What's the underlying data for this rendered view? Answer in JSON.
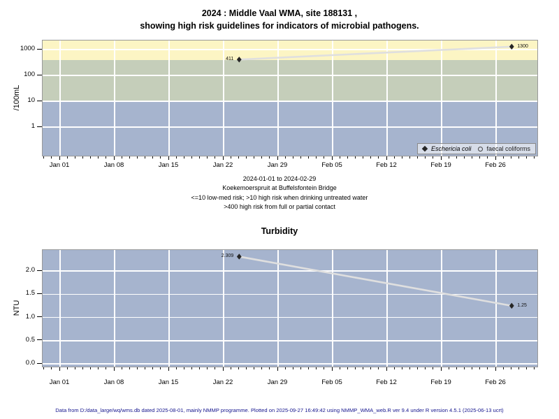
{
  "title": {
    "line1": "2024 : Middle Vaal WMA, site 188131 ,",
    "line2": "showing high risk guidelines for indicators of microbial pathogens."
  },
  "caption": {
    "line1": "2024-01-01 to 2024-02-29",
    "line2": "Koekemoerspruit at Buffelsfontein Bridge",
    "line3": "<=10 low-med risk; >10 high risk when drinking untreated water",
    "line4": ">400 high risk from full or partial contact"
  },
  "footer": "Data from D:/data_large/wq/wms.db dated 2025-08-01, mainly NMMP programme. Plotted on 2025-09-27 16:49:42 using NMMP_WMA_web.R ver 9.4 under R version 4.5.1 (2025-06-13 ucrt)",
  "colors": {
    "grid": "#FFFFFF",
    "data_line": "#DFDFDF",
    "marker": "#262626",
    "panel_border": "#999999",
    "axis_tick": "#000000",
    "footer_text": "#15158E",
    "band_yellow": "#FCF5C4",
    "band_green": "#C5CEBA",
    "band_blue": "#A6B4CE"
  },
  "chart_data": [
    {
      "type": "line",
      "title": "",
      "ylabel": "/100mL",
      "yscale": "log10",
      "ylim": [
        0.07,
        2200
      ],
      "grid": true,
      "y_ticks": [
        {
          "label": "1000",
          "value": 1000
        },
        {
          "label": "100",
          "value": 100
        },
        {
          "label": "10",
          "value": 10
        },
        {
          "label": "1",
          "value": 1
        }
      ],
      "x_ticks": [
        {
          "label": "Jan 01",
          "day": 0
        },
        {
          "label": "Jan 08",
          "day": 7
        },
        {
          "label": "Jan 15",
          "day": 14
        },
        {
          "label": "Jan 22",
          "day": 21
        },
        {
          "label": "Jan 29",
          "day": 28
        },
        {
          "label": "Feb 05",
          "day": 35
        },
        {
          "label": "Feb 12",
          "day": 42
        },
        {
          "label": "Feb 19",
          "day": 49
        },
        {
          "label": "Feb 26",
          "day": 56
        }
      ],
      "bands": [
        {
          "name": "high-risk-full-partial-contact",
          "range": ">400",
          "color": "#FCF5C4",
          "from": 400,
          "to": 2200
        },
        {
          "name": "high-risk-drinking-untreated",
          "range": "10-400",
          "color": "#C5CEBA",
          "from": 10,
          "to": 400
        },
        {
          "name": "low-med-risk",
          "range": "<=10",
          "color": "#A6B4CE",
          "from": 0.07,
          "to": 10
        }
      ],
      "series": [
        {
          "name": "Eschericia coli",
          "marker": "filled-diamond",
          "points": [
            {
              "date": "2024-01-24",
              "value": 411,
              "label": "411",
              "label_side": "left"
            },
            {
              "date": "2024-02-28",
              "value": 1300,
              "label": "1300",
              "label_side": "right"
            }
          ]
        },
        {
          "name": "faecal coliforms",
          "marker": "open-circle",
          "points": []
        }
      ],
      "legend": {
        "position": "bottom-right",
        "entries": [
          {
            "symbol": "filled-diamond",
            "label": "Eschericia coli",
            "italic": true
          },
          {
            "symbol": "open-circle",
            "label": "faecal coliforms",
            "italic": false
          }
        ]
      }
    },
    {
      "type": "line",
      "title": "Turbidity",
      "ylabel": "NTU",
      "yscale": "linear",
      "ylim": [
        -0.06,
        2.45
      ],
      "background": "#A6B4CE",
      "grid": true,
      "y_ticks": [
        {
          "label": "2.0",
          "value": 2.0
        },
        {
          "label": "1.5",
          "value": 1.5
        },
        {
          "label": "1.0",
          "value": 1.0
        },
        {
          "label": "0.5",
          "value": 0.5
        },
        {
          "label": "0.0",
          "value": 0.0
        }
      ],
      "x_ticks": [
        {
          "label": "Jan 01",
          "day": 0
        },
        {
          "label": "Jan 08",
          "day": 7
        },
        {
          "label": "Jan 15",
          "day": 14
        },
        {
          "label": "Jan 22",
          "day": 21
        },
        {
          "label": "Jan 29",
          "day": 28
        },
        {
          "label": "Feb 05",
          "day": 35
        },
        {
          "label": "Feb 12",
          "day": 42
        },
        {
          "label": "Feb 19",
          "day": 49
        },
        {
          "label": "Feb 26",
          "day": 56
        }
      ],
      "series": [
        {
          "name": "Turbidity",
          "marker": "filled-diamond",
          "points": [
            {
              "date": "2024-01-24",
              "value": 2.309,
              "label": "2.309",
              "label_side": "left"
            },
            {
              "date": "2024-02-28",
              "value": 1.25,
              "label": "1.25",
              "label_side": "right"
            }
          ]
        }
      ]
    }
  ]
}
